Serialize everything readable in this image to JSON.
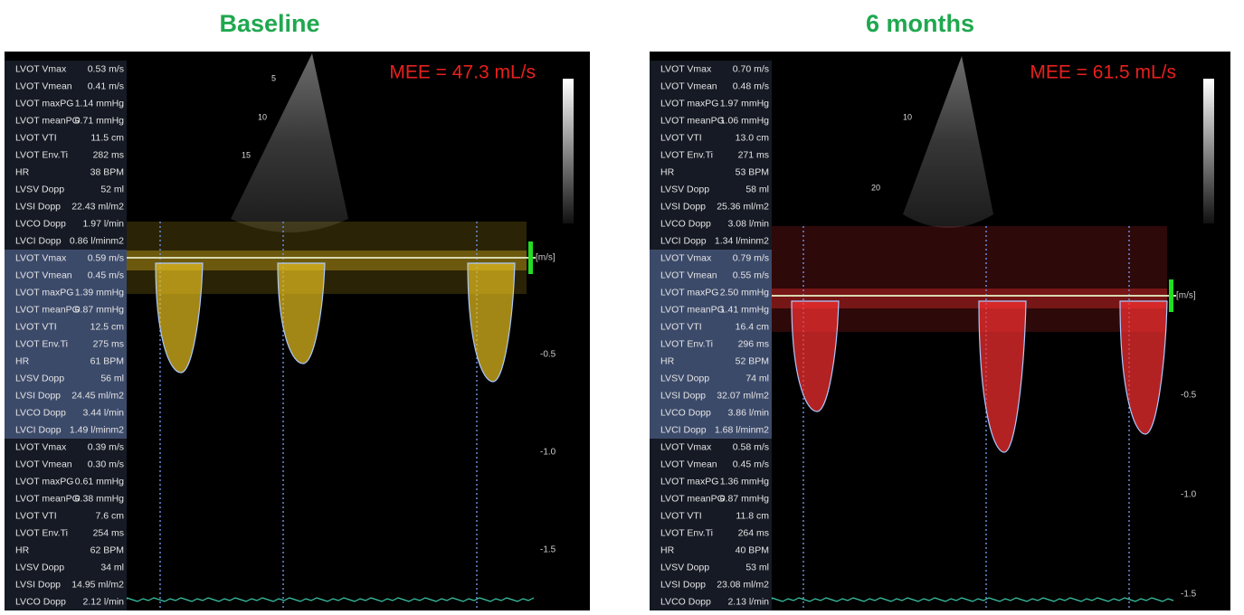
{
  "panels": [
    {
      "title": "Baseline",
      "annotation": "MEE = 47.3 mL/s",
      "unit": "[m/s]",
      "scale_labels": [
        "-0.5",
        "-1.0",
        "-1.5"
      ],
      "depth_labels": [
        "5",
        "10",
        "15"
      ],
      "groups": [
        [
          [
            "LVOT Vmax",
            "0.53 m/s"
          ],
          [
            "LVOT Vmean",
            "0.41 m/s"
          ],
          [
            "LVOT maxPG",
            "1.14 mmHg"
          ],
          [
            "LVOT meanPG",
            "0.71 mmHg"
          ],
          [
            "LVOT VTI",
            "11.5 cm"
          ],
          [
            "LVOT Env.Ti",
            "282 ms"
          ],
          [
            "HR",
            "38 BPM"
          ],
          [
            "LVSV Dopp",
            "52 ml"
          ],
          [
            "LVSI Dopp",
            "22.43 ml/m2"
          ],
          [
            "LVCO Dopp",
            "1.97 l/min"
          ],
          [
            "LVCI Dopp",
            "0.86 l/minm2"
          ]
        ],
        [
          [
            "LVOT Vmax",
            "0.59 m/s"
          ],
          [
            "LVOT Vmean",
            "0.45 m/s"
          ],
          [
            "LVOT maxPG",
            "1.39 mmHg"
          ],
          [
            "LVOT meanPG",
            "0.87 mmHg"
          ],
          [
            "LVOT VTI",
            "12.5 cm"
          ],
          [
            "LVOT Env.Ti",
            "275 ms"
          ],
          [
            "HR",
            "61 BPM"
          ],
          [
            "LVSV Dopp",
            "56 ml"
          ],
          [
            "LVSI Dopp",
            "24.45 ml/m2"
          ],
          [
            "LVCO Dopp",
            "3.44 l/min"
          ],
          [
            "LVCI Dopp",
            "1.49 l/minm2"
          ]
        ],
        [
          [
            "LVOT Vmax",
            "0.39 m/s"
          ],
          [
            "LVOT Vmean",
            "0.30 m/s"
          ],
          [
            "LVOT maxPG",
            "0.61 mmHg"
          ],
          [
            "LVOT meanPG",
            "0.38 mmHg"
          ],
          [
            "LVOT VTI",
            "7.6 cm"
          ],
          [
            "LVOT Env.Ti",
            "254 ms"
          ],
          [
            "HR",
            "62 BPM"
          ],
          [
            "LVSV Dopp",
            "34 ml"
          ],
          [
            "LVSI Dopp",
            "14.95 ml/m2"
          ],
          [
            "LVCO Dopp",
            "2.12 l/min"
          ]
        ]
      ]
    },
    {
      "title": "6 months",
      "annotation": "MEE = 61.5 mL/s",
      "unit": "[m/s]",
      "scale_labels": [
        "-0.5",
        "-1.0",
        "-1.5"
      ],
      "depth_labels": [
        "10",
        "20"
      ],
      "groups": [
        [
          [
            "LVOT Vmax",
            "0.70 m/s"
          ],
          [
            "LVOT Vmean",
            "0.48 m/s"
          ],
          [
            "LVOT maxPG",
            "1.97 mmHg"
          ],
          [
            "LVOT meanPG",
            "1.06 mmHg"
          ],
          [
            "LVOT VTI",
            "13.0 cm"
          ],
          [
            "LVOT Env.Ti",
            "271 ms"
          ],
          [
            "HR",
            "53 BPM"
          ],
          [
            "LVSV Dopp",
            "58 ml"
          ],
          [
            "LVSI Dopp",
            "25.36 ml/m2"
          ],
          [
            "LVCO Dopp",
            "3.08 l/min"
          ],
          [
            "LVCI Dopp",
            "1.34 l/minm2"
          ]
        ],
        [
          [
            "LVOT Vmax",
            "0.79 m/s"
          ],
          [
            "LVOT Vmean",
            "0.55 m/s"
          ],
          [
            "LVOT maxPG",
            "2.50 mmHg"
          ],
          [
            "LVOT meanPG",
            "1.41 mmHg"
          ],
          [
            "LVOT VTI",
            "16.4 cm"
          ],
          [
            "LVOT Env.Ti",
            "296 ms"
          ],
          [
            "HR",
            "52 BPM"
          ],
          [
            "LVSV Dopp",
            "74 ml"
          ],
          [
            "LVSI Dopp",
            "32.07 ml/m2"
          ],
          [
            "LVCO Dopp",
            "3.86 l/min"
          ],
          [
            "LVCI Dopp",
            "1.68 l/minm2"
          ]
        ],
        [
          [
            "LVOT Vmax",
            "0.58 m/s"
          ],
          [
            "LVOT Vmean",
            "0.45 m/s"
          ],
          [
            "LVOT maxPG",
            "1.36 mmHg"
          ],
          [
            "LVOT meanPG",
            "0.87 mmHg"
          ],
          [
            "LVOT VTI",
            "11.8 cm"
          ],
          [
            "LVOT Env.Ti",
            "264 ms"
          ],
          [
            "HR",
            "40 BPM"
          ],
          [
            "LVSV Dopp",
            "53 ml"
          ],
          [
            "LVSI Dopp",
            "23.08 ml/m2"
          ],
          [
            "LVCO Dopp",
            "2.13 l/min"
          ]
        ]
      ]
    }
  ]
}
